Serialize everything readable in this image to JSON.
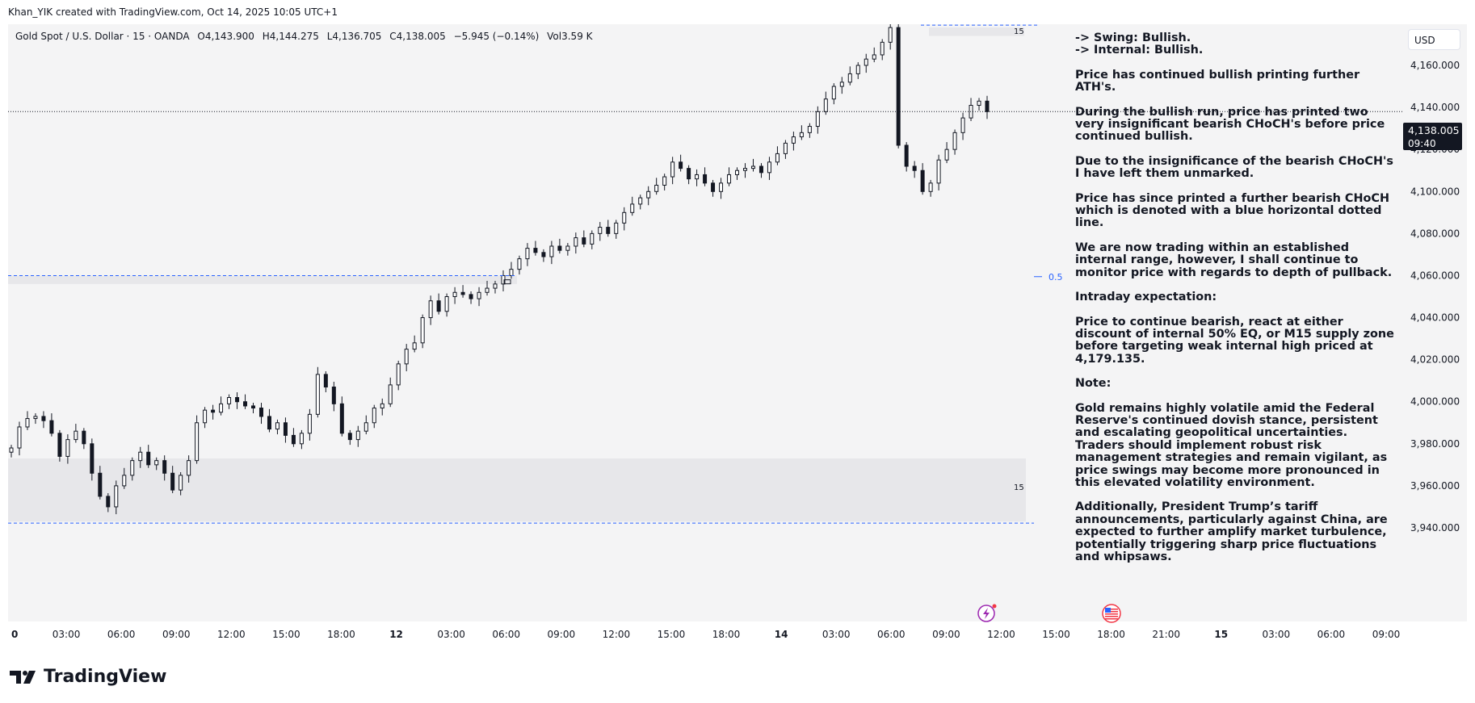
{
  "caption": "Khan_YIK created with TradingView.com, Oct 14, 2025 10:05 UTC+1",
  "legend": {
    "symbol": "Gold Spot / U.S. Dollar · 15 · OANDA",
    "open": "O4,143.900",
    "high": "H4,144.275",
    "low": "L4,136.705",
    "close": "C4,138.005",
    "change": "−5.945 (−0.14%)",
    "volume": "Vol3.59 K"
  },
  "currency": "USD",
  "last_price": {
    "value": "4,138.005",
    "countdown": "09:40"
  },
  "zone_labels": {
    "top_zone": "15",
    "bottom_zone": "15",
    "eq": "0.5"
  },
  "brand": "TradingView",
  "colors": {
    "candle": "#131722",
    "dashed_line": "#2962ff",
    "zone_fill": "#e7e7ea",
    "eq_label": "#2962ff",
    "background": "#ffffff",
    "plot_bg": "#f4f4f5"
  },
  "icons": [
    "lightning-event-icon",
    "us-flag-event-icon",
    "tradingview-logo-icon",
    "pencil-label-icon"
  ],
  "notes": [
    "-> Swing: Bullish.",
    "-> Internal: Bullish.",
    "Price has continued bullish printing further ATH's.",
    "During the bullish run, price has printed two very insignificant bearish CHoCH's before price continued bullish.",
    "Due to the insignificance of the bearish CHoCH's I have left them unmarked.",
    "Price has since printed a further bearish CHoCH which is denoted with a blue horizontal dotted line.",
    "We are now trading within an established internal range, however, I shall continue to monitor price with regards to depth of pullback.",
    "Intraday expectation:",
    "Price to continue bearish, react at either discount of internal 50% EQ, or M15 supply zone before targeting weak internal high priced at 4,179.135.",
    "Note:",
    "Gold remains highly volatile amid the Federal Reserve's continued dovish stance, persistent and escalating geopolitical uncertainties. Traders should implement robust risk management strategies and remain vigilant, as price swings may become more pronounced in this elevated volatility environment.",
    "Additionally, President Trump’s tariff announcements, particularly against China, are expected to further amplify market turbulence, potentially triggering sharp price fluctuations and whipsaws."
  ],
  "chart_data": {
    "type": "candlestick",
    "ylim": [
      3935,
      4180
    ],
    "y_ticks": [
      3940,
      3960,
      3980,
      4000,
      4020,
      4040,
      4060,
      4080,
      4100,
      4120,
      4140,
      4160
    ],
    "y_tick_labels": [
      "3,940.000",
      "3,960.000",
      "3,980.000",
      "4,000.000",
      "4,020.000",
      "4,040.000",
      "4,060.000",
      "4,080.000",
      "4,100.000",
      "4,120.000",
      "4,140.000",
      "4,160.000"
    ],
    "x_ticks": [
      {
        "label": "0",
        "bold": true
      },
      {
        "label": "03:00"
      },
      {
        "label": "06:00"
      },
      {
        "label": "09:00"
      },
      {
        "label": "12:00"
      },
      {
        "label": "15:00"
      },
      {
        "label": "18:00"
      },
      {
        "label": "12",
        "bold": true
      },
      {
        "label": "03:00"
      },
      {
        "label": "06:00"
      },
      {
        "label": "09:00"
      },
      {
        "label": "12:00"
      },
      {
        "label": "15:00"
      },
      {
        "label": "18:00"
      },
      {
        "label": "14",
        "bold": true
      },
      {
        "label": "03:00"
      },
      {
        "label": "06:00"
      },
      {
        "label": "09:00"
      },
      {
        "label": "12:00"
      },
      {
        "label": "15:00"
      },
      {
        "label": "18:00"
      },
      {
        "label": "21:00"
      },
      {
        "label": "15",
        "bold": true
      },
      {
        "label": "03:00"
      },
      {
        "label": "06:00"
      },
      {
        "label": "09:00"
      }
    ],
    "close_path": [
      3978,
      3988,
      3992,
      3993,
      3991,
      3985,
      3974,
      3982,
      3986,
      3980,
      3966,
      3955,
      3950,
      3960,
      3965,
      3972,
      3976,
      3970,
      3972,
      3966,
      3958,
      3965,
      3972,
      3990,
      3996,
      3995,
      3999,
      4002,
      4000,
      3998,
      3997,
      3993,
      3987,
      3990,
      3984,
      3980,
      3985,
      3994,
      4013,
      4007,
      3999,
      3985,
      3982,
      3986,
      3990,
      3997,
      3999,
      4008,
      4018,
      4025,
      4028,
      4040,
      4048,
      4043,
      4050,
      4052,
      4051,
      4049,
      4052,
      4054,
      4056,
      4060,
      4063,
      4068,
      4073,
      4071,
      4069,
      4074,
      4072,
      4074,
      4078,
      4075,
      4080,
      4083,
      4080,
      4085,
      4090,
      4094,
      4097,
      4100,
      4103,
      4107,
      4114,
      4111,
      4106,
      4108,
      4104,
      4100,
      4104,
      4108,
      4110,
      4111,
      4112,
      4109,
      4114,
      4118,
      4123,
      4126,
      4128,
      4131,
      4138,
      4144,
      4150,
      4152,
      4156,
      4160,
      4163,
      4165,
      4171,
      4178,
      4122,
      4112,
      4110,
      4100,
      4104,
      4115,
      4120,
      4128,
      4135,
      4141,
      4143,
      4138
    ],
    "eq_level": 4059.5,
    "supply_zone": [
      4154,
      4178
    ],
    "demand_zone": [
      3943,
      3973
    ],
    "weak_high": 4179.135,
    "prior_high_line": 4060,
    "last_price": 4138.005
  }
}
